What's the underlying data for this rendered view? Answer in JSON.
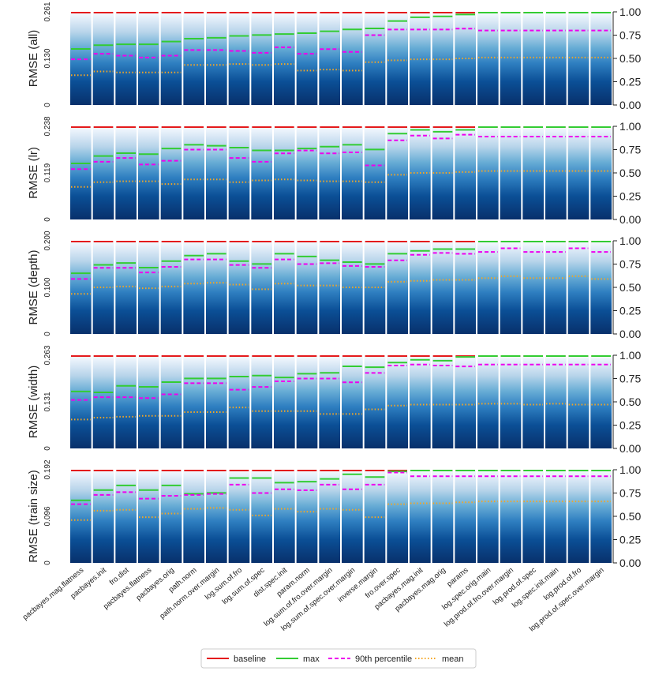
{
  "chart_data": {
    "type": "bar",
    "stacked_gradient": true,
    "categories": [
      "pacbayes.mag.flatness",
      "pacbayes.init",
      "fro.dist",
      "pacbayes.flatness",
      "pacbayes.orig",
      "path.norm",
      "path.norm.over.margin",
      "log.sum.of.fro",
      "log.sum.of.spec",
      "dist.spec.init",
      "param.norm",
      "log.sum.of.fro.over.margin",
      "log.sum.of.spec.over.margin",
      "inverse.margin",
      "fro.over.spec",
      "pacbayes.mag.init",
      "pacbayes.mag.orig",
      "params",
      "log.spec.orig.main",
      "log.prod.of.fro.over.margin",
      "log.prod.of.spec",
      "log.spec.init.main",
      "log.prod.of.fro",
      "log.prod.of.spec.over.margin"
    ],
    "right_axis": {
      "ylim": [
        0,
        1
      ],
      "ticks": [
        "0.00",
        "0.25",
        "0.50",
        "0.75",
        "1.00"
      ]
    },
    "legend": {
      "position": "bottom-center",
      "entries": [
        "baseline",
        "max",
        "90th percentile",
        "mean"
      ]
    },
    "series_colors": {
      "baseline": "#e41a1c",
      "max": "#33cc33",
      "p90": "#ee00ee",
      "mean": "#f5a623"
    },
    "panels": [
      {
        "ylabel": "RMSE (all)",
        "left_ticks": [
          "0",
          "0.130",
          "0.261"
        ],
        "max": [
          0.61,
          0.65,
          0.66,
          0.66,
          0.69,
          0.72,
          0.73,
          0.75,
          0.76,
          0.77,
          0.78,
          0.8,
          0.82,
          0.83,
          0.91,
          0.95,
          0.96,
          0.98,
          1.0,
          1.0,
          1.0,
          1.0,
          1.0,
          1.0
        ],
        "p90": [
          0.49,
          0.55,
          0.53,
          0.51,
          0.53,
          0.59,
          0.59,
          0.58,
          0.56,
          0.62,
          0.55,
          0.6,
          0.57,
          0.75,
          0.81,
          0.81,
          0.81,
          0.82,
          0.8,
          0.8,
          0.8,
          0.8,
          0.8,
          0.8
        ],
        "mean": [
          0.32,
          0.36,
          0.35,
          0.35,
          0.35,
          0.43,
          0.43,
          0.44,
          0.43,
          0.44,
          0.37,
          0.38,
          0.37,
          0.46,
          0.48,
          0.49,
          0.49,
          0.5,
          0.51,
          0.51,
          0.51,
          0.51,
          0.51,
          0.51
        ]
      },
      {
        "ylabel": "RMSE (lr)",
        "left_ticks": [
          "0",
          "0.119",
          "0.238"
        ],
        "max": [
          0.61,
          0.69,
          0.72,
          0.71,
          0.77,
          0.81,
          0.8,
          0.78,
          0.75,
          0.75,
          0.77,
          0.79,
          0.81,
          0.76,
          0.93,
          0.97,
          0.95,
          0.97,
          1.0,
          1.0,
          1.0,
          1.0,
          1.0,
          1.0
        ],
        "p90": [
          0.54,
          0.62,
          0.66,
          0.59,
          0.63,
          0.75,
          0.75,
          0.66,
          0.62,
          0.71,
          0.74,
          0.71,
          0.72,
          0.58,
          0.85,
          0.9,
          0.87,
          0.91,
          0.89,
          0.89,
          0.89,
          0.89,
          0.89,
          0.89
        ],
        "mean": [
          0.35,
          0.4,
          0.41,
          0.41,
          0.38,
          0.43,
          0.43,
          0.4,
          0.42,
          0.43,
          0.42,
          0.41,
          0.41,
          0.4,
          0.48,
          0.5,
          0.5,
          0.51,
          0.52,
          0.52,
          0.52,
          0.52,
          0.52,
          0.52
        ]
      },
      {
        "ylabel": "RMSE (depth)",
        "left_ticks": [
          "0",
          "0.100",
          "0.200"
        ],
        "max": [
          0.66,
          0.75,
          0.77,
          0.72,
          0.79,
          0.85,
          0.87,
          0.79,
          0.76,
          0.87,
          0.84,
          0.8,
          0.78,
          0.76,
          0.87,
          0.9,
          0.92,
          0.92,
          1.0,
          1.0,
          1.0,
          1.0,
          1.0,
          1.0
        ],
        "p90": [
          0.59,
          0.71,
          0.71,
          0.66,
          0.72,
          0.8,
          0.8,
          0.74,
          0.71,
          0.8,
          0.75,
          0.76,
          0.73,
          0.72,
          0.79,
          0.85,
          0.87,
          0.86,
          0.88,
          0.92,
          0.88,
          0.88,
          0.92,
          0.88
        ],
        "mean": [
          0.43,
          0.5,
          0.51,
          0.49,
          0.51,
          0.54,
          0.55,
          0.53,
          0.48,
          0.54,
          0.52,
          0.52,
          0.5,
          0.5,
          0.56,
          0.57,
          0.58,
          0.58,
          0.6,
          0.62,
          0.6,
          0.6,
          0.62,
          0.59
        ]
      },
      {
        "ylabel": "RMSE (width)",
        "left_ticks": [
          "0",
          "0.131",
          "0.263"
        ],
        "max": [
          0.62,
          0.61,
          0.68,
          0.67,
          0.72,
          0.76,
          0.76,
          0.78,
          0.79,
          0.77,
          0.81,
          0.82,
          0.89,
          0.88,
          0.93,
          0.96,
          0.95,
          0.99,
          1.0,
          1.0,
          1.0,
          1.0,
          1.0,
          1.0
        ],
        "p90": [
          0.52,
          0.55,
          0.55,
          0.54,
          0.58,
          0.7,
          0.7,
          0.63,
          0.66,
          0.72,
          0.75,
          0.75,
          0.71,
          0.81,
          0.89,
          0.9,
          0.89,
          0.88,
          0.9,
          0.9,
          0.9,
          0.9,
          0.9,
          0.9
        ],
        "mean": [
          0.31,
          0.33,
          0.34,
          0.35,
          0.35,
          0.39,
          0.39,
          0.44,
          0.4,
          0.4,
          0.4,
          0.37,
          0.37,
          0.42,
          0.46,
          0.47,
          0.47,
          0.47,
          0.48,
          0.48,
          0.47,
          0.48,
          0.47,
          0.47
        ]
      },
      {
        "ylabel": "RMSE (train size)",
        "left_ticks": [
          "0",
          "0.096",
          "0.192"
        ],
        "max": [
          0.68,
          0.79,
          0.84,
          0.79,
          0.84,
          0.75,
          0.76,
          0.92,
          0.92,
          0.87,
          0.88,
          0.91,
          0.96,
          0.93,
          0.99,
          1.0,
          1.0,
          1.0,
          1.0,
          1.0,
          1.0,
          1.0,
          1.0,
          1.0
        ],
        "p90": [
          0.63,
          0.73,
          0.76,
          0.69,
          0.72,
          0.73,
          0.74,
          0.84,
          0.75,
          0.79,
          0.78,
          0.84,
          0.79,
          0.84,
          0.97,
          0.93,
          0.93,
          0.93,
          0.93,
          0.93,
          0.93,
          0.93,
          0.93,
          0.93
        ],
        "mean": [
          0.46,
          0.56,
          0.57,
          0.49,
          0.53,
          0.58,
          0.59,
          0.57,
          0.51,
          0.58,
          0.55,
          0.58,
          0.57,
          0.49,
          0.63,
          0.64,
          0.64,
          0.65,
          0.66,
          0.66,
          0.66,
          0.66,
          0.66,
          0.66
        ]
      }
    ]
  }
}
